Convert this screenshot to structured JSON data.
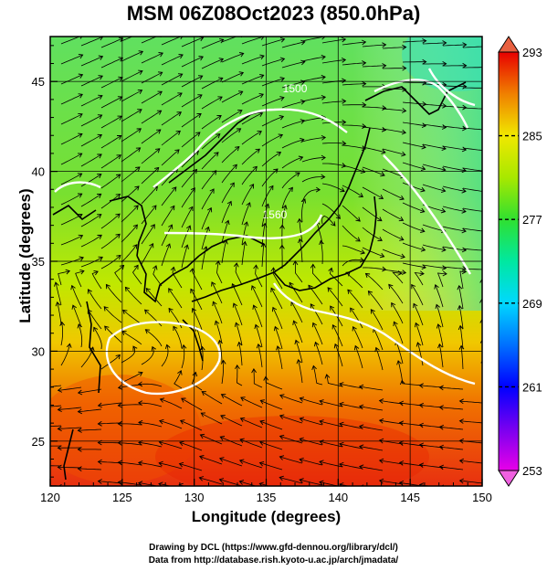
{
  "title": "MSM 06Z08Oct2023 (850.0hPa)",
  "chart_data": {
    "type": "heatmap",
    "title": "MSM 06Z08Oct2023 (850.0hPa)",
    "xlabel": "Longitude (degrees)",
    "ylabel": "Latitude  (degrees)",
    "xlim": [
      120,
      150
    ],
    "ylim": [
      22.5,
      47.5
    ],
    "x_ticks": [
      120,
      125,
      130,
      135,
      140,
      145,
      150
    ],
    "y_ticks": [
      25,
      30,
      35,
      40,
      45
    ],
    "colorbar": {
      "min": 253,
      "max": 293,
      "ticks": [
        253,
        261,
        269,
        277,
        285,
        293
      ],
      "colors": [
        "#e800e8",
        "#7800f0",
        "#0000ff",
        "#0060ff",
        "#00b8ff",
        "#00e8d0",
        "#00e888",
        "#30e030",
        "#80e000",
        "#c8f000",
        "#f0e800",
        "#f8b800",
        "#f07800",
        "#e83000",
        "#e80000"
      ]
    },
    "temperature_field": {
      "description": "850hPa temperature in K; warm south, cool north-east",
      "samples": [
        {
          "lon": 120,
          "lat": 47,
          "value": 278
        },
        {
          "lon": 130,
          "lat": 47,
          "value": 279
        },
        {
          "lon": 140,
          "lat": 47,
          "value": 276
        },
        {
          "lon": 150,
          "lat": 47,
          "value": 271
        },
        {
          "lon": 120,
          "lat": 40,
          "value": 279
        },
        {
          "lon": 130,
          "lat": 40,
          "value": 280
        },
        {
          "lon": 140,
          "lat": 40,
          "value": 279
        },
        {
          "lon": 150,
          "lat": 40,
          "value": 275
        },
        {
          "lon": 120,
          "lat": 35,
          "value": 282
        },
        {
          "lon": 130,
          "lat": 35,
          "value": 283
        },
        {
          "lon": 140,
          "lat": 35,
          "value": 282
        },
        {
          "lon": 150,
          "lat": 35,
          "value": 279
        },
        {
          "lon": 120,
          "lat": 30,
          "value": 287
        },
        {
          "lon": 130,
          "lat": 30,
          "value": 288
        },
        {
          "lon": 140,
          "lat": 30,
          "value": 286
        },
        {
          "lon": 150,
          "lat": 30,
          "value": 283
        },
        {
          "lon": 120,
          "lat": 25,
          "value": 289
        },
        {
          "lon": 130,
          "lat": 25,
          "value": 291
        },
        {
          "lon": 140,
          "lat": 25,
          "value": 290
        },
        {
          "lon": 150,
          "lat": 25,
          "value": 288
        }
      ]
    },
    "contour_labels": [
      {
        "text": "1500",
        "lon": 137,
        "lat": 44.4
      },
      {
        "text": "1560",
        "lon": 135.6,
        "lat": 37.4
      }
    ],
    "features": [
      "streamlines",
      "white geopotential height contours",
      "coastlines",
      "lat/lon grid"
    ]
  },
  "credits": {
    "line1": "Drawing by DCL (https://www.gfd-dennou.org/library/dcl/)",
    "line2": "Data from http://database.rish.kyoto-u.ac.jp/arch/jmadata/"
  }
}
